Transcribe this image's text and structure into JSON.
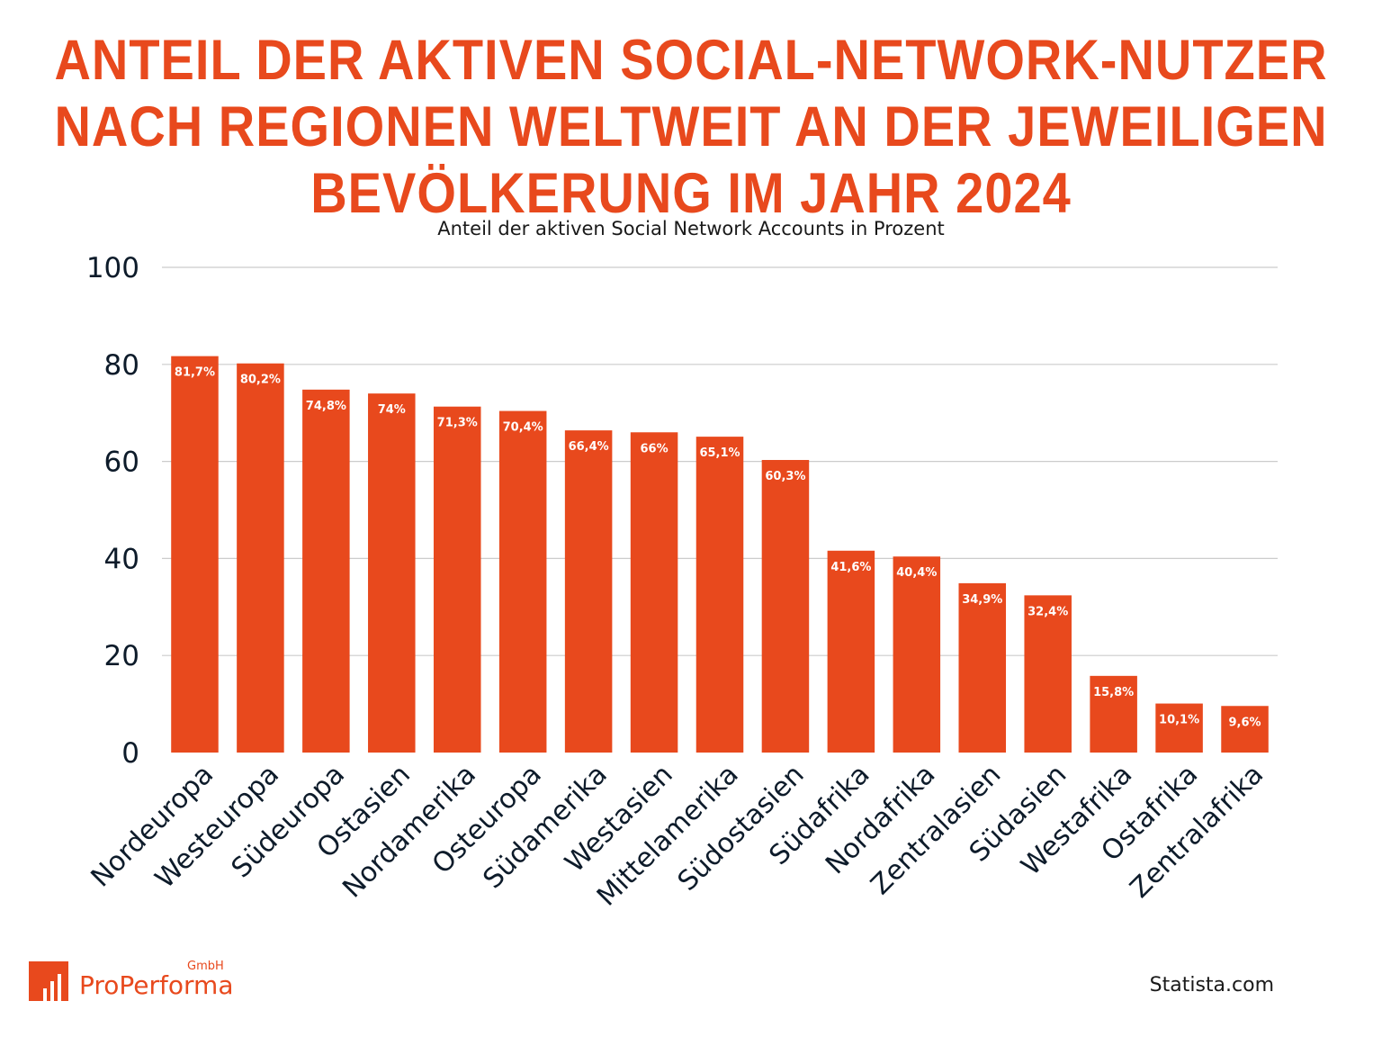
{
  "header": {
    "title_lines": [
      "Anteil der aktiven Social-Network-Nutzer",
      "nach Regionen weltweit an der jeweiligen",
      "Bevölkerung im Jahr 2024"
    ],
    "subtitle": "Anteil der aktiven Social Network Accounts in Prozent"
  },
  "colors": {
    "accent": "#e8491d",
    "bar": "#e8491d",
    "axis_text": "#0d1b2a",
    "grid": "#cccccc",
    "label_text": "#ffffff"
  },
  "chart_data": {
    "type": "bar",
    "title": "Anteil der aktiven Social-Network-Nutzer nach Regionen weltweit an der jeweiligen Bevölkerung im Jahr 2024",
    "subtitle": "Anteil der aktiven Social Network Accounts in Prozent",
    "categories": [
      "Nordeuropa",
      "Westeuropa",
      "Südeuropa",
      "Ostasien",
      "Nordamerika",
      "Osteuropa",
      "Südamerika",
      "Westasien",
      "Mittelamerika",
      "Südostasien",
      "Südafrika",
      "Nordafrika",
      "Zentralasien",
      "Südasien",
      "Westafrika",
      "Ostafrika",
      "Zentralafrika"
    ],
    "values": [
      81.7,
      80.2,
      74.8,
      74,
      71.3,
      70.4,
      66.4,
      66,
      65.1,
      60.3,
      41.6,
      40.4,
      34.9,
      32.4,
      15.8,
      10.1,
      9.6
    ],
    "data_labels": [
      "81,7%",
      "80,2%",
      "74,8%",
      "74%",
      "71,3%",
      "70,4%",
      "66,4%",
      "66%",
      "65,1%",
      "60,3%",
      "41,6%",
      "40,4%",
      "34,9%",
      "32,4%",
      "15,8%",
      "10,1%",
      "9,6%"
    ],
    "y_ticks": [
      0,
      20,
      40,
      60,
      80,
      100
    ],
    "ylim": [
      0,
      100
    ],
    "xlabel": "",
    "ylabel": "",
    "grid": true,
    "legend": "none"
  },
  "branding": {
    "logo_name": "ProPerforma",
    "logo_suffix": "GmbH",
    "logo_icon": "bar-chart-logo-icon",
    "source": "Statista.com"
  }
}
